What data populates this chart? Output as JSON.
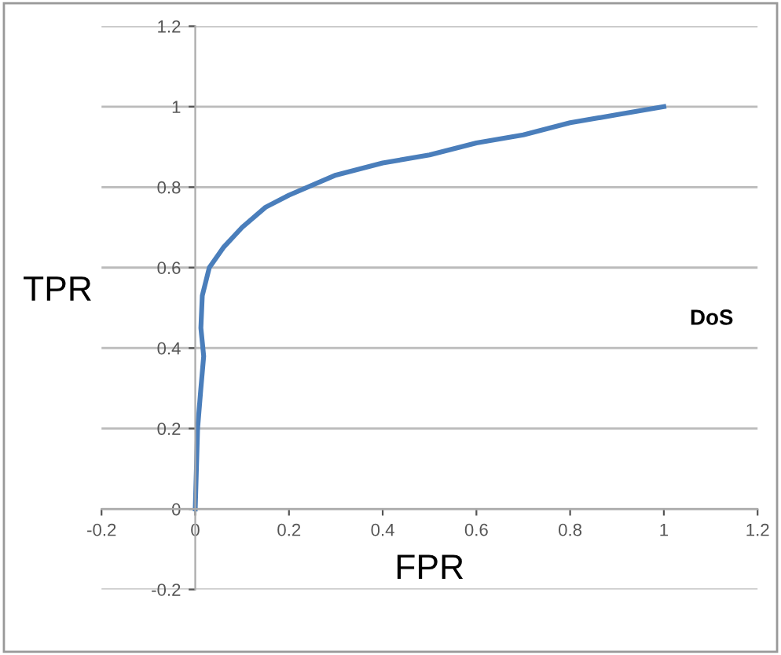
{
  "chart_data": {
    "type": "line",
    "xlabel": "FPR",
    "ylabel": "TPR",
    "annotations": [
      "DoS"
    ],
    "x": [
      0,
      0.005,
      0.012,
      0.018,
      0.012,
      0.015,
      0.03,
      0.06,
      0.1,
      0.15,
      0.2,
      0.3,
      0.4,
      0.5,
      0.6,
      0.7,
      0.8,
      0.9,
      1
    ],
    "series": [
      {
        "color": "#4a7ebb",
        "values": [
          0,
          0.2,
          0.3,
          0.38,
          0.45,
          0.53,
          0.6,
          0.65,
          0.7,
          0.75,
          0.78,
          0.83,
          0.86,
          0.88,
          0.91,
          0.93,
          0.96,
          0.98,
          1
        ]
      }
    ],
    "xlim": [
      -0.2,
      1.2
    ],
    "ylim": [
      -0.2,
      1.2
    ],
    "xticks": [
      {
        "value": -0.2,
        "label": "-0.2"
      },
      0,
      0.2,
      0.4,
      0.6,
      0.8,
      1,
      1.2
    ],
    "yticks": [
      {
        "value": -0.2,
        "label": "-0.2"
      },
      0,
      0.2,
      0.4,
      0.6,
      0.8,
      1,
      1.2
    ],
    "grid": "y",
    "legend": false,
    "marker": "none",
    "line_style": "solid"
  }
}
